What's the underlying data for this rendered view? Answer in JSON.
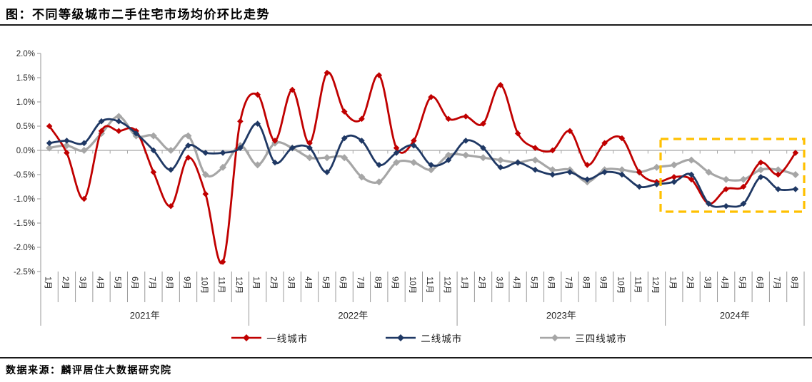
{
  "title": "图：不同等级城市二手住宅市场均价环比走势",
  "source": "数据来源：麟评居住大数据研究院",
  "colors": {
    "axis": "#A6A6A6",
    "label_text": "#262626",
    "divider": "#1A1A1A",
    "highlight": "#FFC000"
  },
  "chart_data": {
    "type": "line",
    "smooth": true,
    "unit": "%",
    "ylim": [
      -2.5,
      2.0
    ],
    "grid": "zero-line-only",
    "legend_position": "bottom",
    "yticks": [
      "2.0%",
      "1.5%",
      "1.0%",
      "0.5%",
      "0.0%",
      "-0.5%",
      "-1.0%",
      "-1.5%",
      "-2.0%",
      "-2.5%"
    ],
    "years": [
      {
        "label": "2021年",
        "months": [
          "1月",
          "2月",
          "3月",
          "4月",
          "5月",
          "6月",
          "7月",
          "8月",
          "9月",
          "10月",
          "11月",
          "12月"
        ]
      },
      {
        "label": "2022年",
        "months": [
          "1月",
          "2月",
          "3月",
          "4月",
          "5月",
          "6月",
          "7月",
          "8月",
          "9月",
          "10月",
          "11月",
          "12月"
        ]
      },
      {
        "label": "2023年",
        "months": [
          "1月",
          "2月",
          "3月",
          "4月",
          "5月",
          "6月",
          "7月",
          "8月",
          "9月",
          "10月",
          "11月",
          "12月"
        ]
      },
      {
        "label": "2024年",
        "months": [
          "1月",
          "2月",
          "3月",
          "4月",
          "5月",
          "6月",
          "7月",
          "8月"
        ]
      }
    ],
    "series": [
      {
        "name": "一线城市",
        "color": "#C00000",
        "marker": "diamond",
        "values": [
          0.5,
          -0.05,
          -1.0,
          0.4,
          0.4,
          0.4,
          -0.45,
          -1.15,
          -0.15,
          -0.9,
          -2.3,
          0.6,
          1.15,
          0.2,
          1.25,
          0.15,
          1.6,
          0.8,
          0.65,
          1.55,
          0.05,
          0.2,
          1.1,
          0.65,
          0.7,
          0.55,
          1.35,
          0.35,
          0.05,
          0.0,
          0.4,
          -0.3,
          0.15,
          0.25,
          -0.45,
          -0.65,
          -0.55,
          -0.6,
          -1.1,
          -0.8,
          -0.75,
          -0.25,
          -0.5,
          -0.05
        ]
      },
      {
        "name": "二线城市",
        "color": "#1F3864",
        "marker": "diamond",
        "values": [
          0.15,
          0.2,
          0.15,
          0.6,
          0.6,
          0.35,
          0.0,
          -0.4,
          0.1,
          -0.05,
          -0.05,
          0.05,
          0.55,
          -0.25,
          0.05,
          0.05,
          -0.45,
          0.25,
          0.2,
          -0.3,
          -0.05,
          0.1,
          -0.3,
          -0.2,
          0.2,
          0.05,
          -0.35,
          -0.25,
          -0.4,
          -0.5,
          -0.45,
          -0.6,
          -0.45,
          -0.5,
          -0.75,
          -0.7,
          -0.65,
          -0.5,
          -1.1,
          -1.15,
          -1.1,
          -0.55,
          -0.8,
          -0.8
        ]
      },
      {
        "name": "三四线城市",
        "color": "#A6A6A6",
        "marker": "diamond",
        "values": [
          0.05,
          0.1,
          0.0,
          0.35,
          0.7,
          0.3,
          0.3,
          0.0,
          0.3,
          -0.5,
          -0.35,
          0.1,
          -0.3,
          0.15,
          0.05,
          -0.15,
          -0.15,
          -0.15,
          -0.55,
          -0.65,
          -0.25,
          -0.25,
          -0.4,
          -0.1,
          -0.1,
          -0.15,
          -0.2,
          -0.25,
          -0.2,
          -0.4,
          -0.4,
          -0.65,
          -0.4,
          -0.4,
          -0.45,
          -0.35,
          -0.3,
          -0.2,
          -0.45,
          -0.6,
          -0.6,
          -0.4,
          -0.4,
          -0.5
        ]
      }
    ],
    "highlight_box": {
      "color": "#FFC000",
      "style": "dashed",
      "covers": "2024年1月-8月"
    }
  }
}
